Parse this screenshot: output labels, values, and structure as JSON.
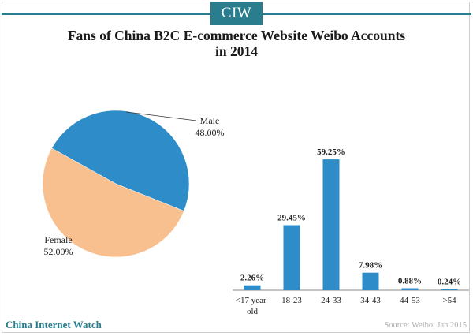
{
  "brand": "CIW",
  "title_line1": "Fans of China B2C E-commerce Website Weibo Accounts",
  "title_line2": "in 2014",
  "chart_data": [
    {
      "type": "pie",
      "categories": [
        "Male",
        "Female"
      ],
      "values": [
        48.0,
        52.0
      ],
      "labels": [
        "48.00%",
        "52.00%"
      ],
      "colors": [
        "#2e8dc8",
        "#f9c08f"
      ]
    },
    {
      "type": "bar",
      "categories": [
        "<17 year-old",
        "18-23",
        "24-33",
        "34-43",
        "44-53",
        ">54"
      ],
      "category_lines": [
        [
          "<17 year-",
          "old"
        ],
        [
          "18-23"
        ],
        [
          "24-33"
        ],
        [
          "34-43"
        ],
        [
          "44-53"
        ],
        [
          ">54"
        ]
      ],
      "values": [
        2.26,
        29.45,
        59.25,
        7.98,
        0.88,
        0.24
      ],
      "labels": [
        "2.26%",
        "29.45%",
        "59.25%",
        "7.98%",
        "0.88%",
        "0.24%"
      ],
      "color": "#2e8dc8",
      "ylim": [
        0,
        100
      ]
    }
  ],
  "footer": {
    "left": "China Internet Watch",
    "right": "Source: Weibo, Jan 2015"
  }
}
